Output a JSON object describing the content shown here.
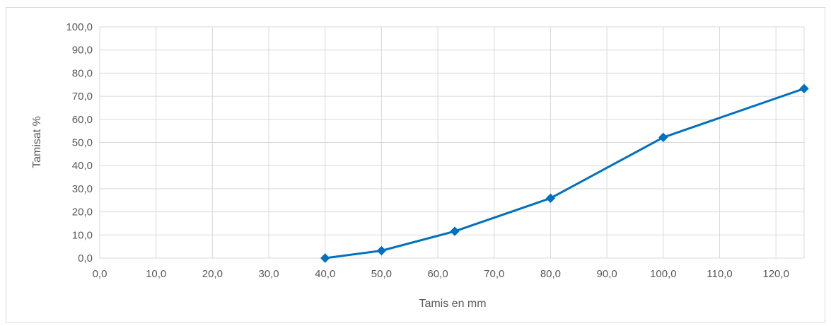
{
  "chart_data": {
    "type": "line",
    "xlabel": "Tamis en mm",
    "ylabel": "Tamisat %",
    "xlim": [
      0,
      125
    ],
    "ylim": [
      0,
      100
    ],
    "x_ticks": [
      "0,0",
      "10,0",
      "20,0",
      "30,0",
      "40,0",
      "50,0",
      "60,0",
      "70,0",
      "80,0",
      "90,0",
      "100,0",
      "110,0",
      "120,0"
    ],
    "x_tick_values": [
      0,
      10,
      20,
      30,
      40,
      50,
      60,
      70,
      80,
      90,
      100,
      110,
      120
    ],
    "y_ticks": [
      "0,0",
      "10,0",
      "20,0",
      "30,0",
      "40,0",
      "50,0",
      "60,0",
      "70,0",
      "80,0",
      "90,0",
      "100,0"
    ],
    "y_tick_values": [
      0,
      10,
      20,
      30,
      40,
      50,
      60,
      70,
      80,
      90,
      100
    ],
    "grid": true,
    "series": [
      {
        "color": "#0070c0",
        "marker": "diamond",
        "x": [
          40,
          50,
          63,
          80,
          100,
          125
        ],
        "y": [
          0.0,
          3.2,
          11.6,
          25.9,
          52.2,
          73.3
        ]
      }
    ]
  }
}
